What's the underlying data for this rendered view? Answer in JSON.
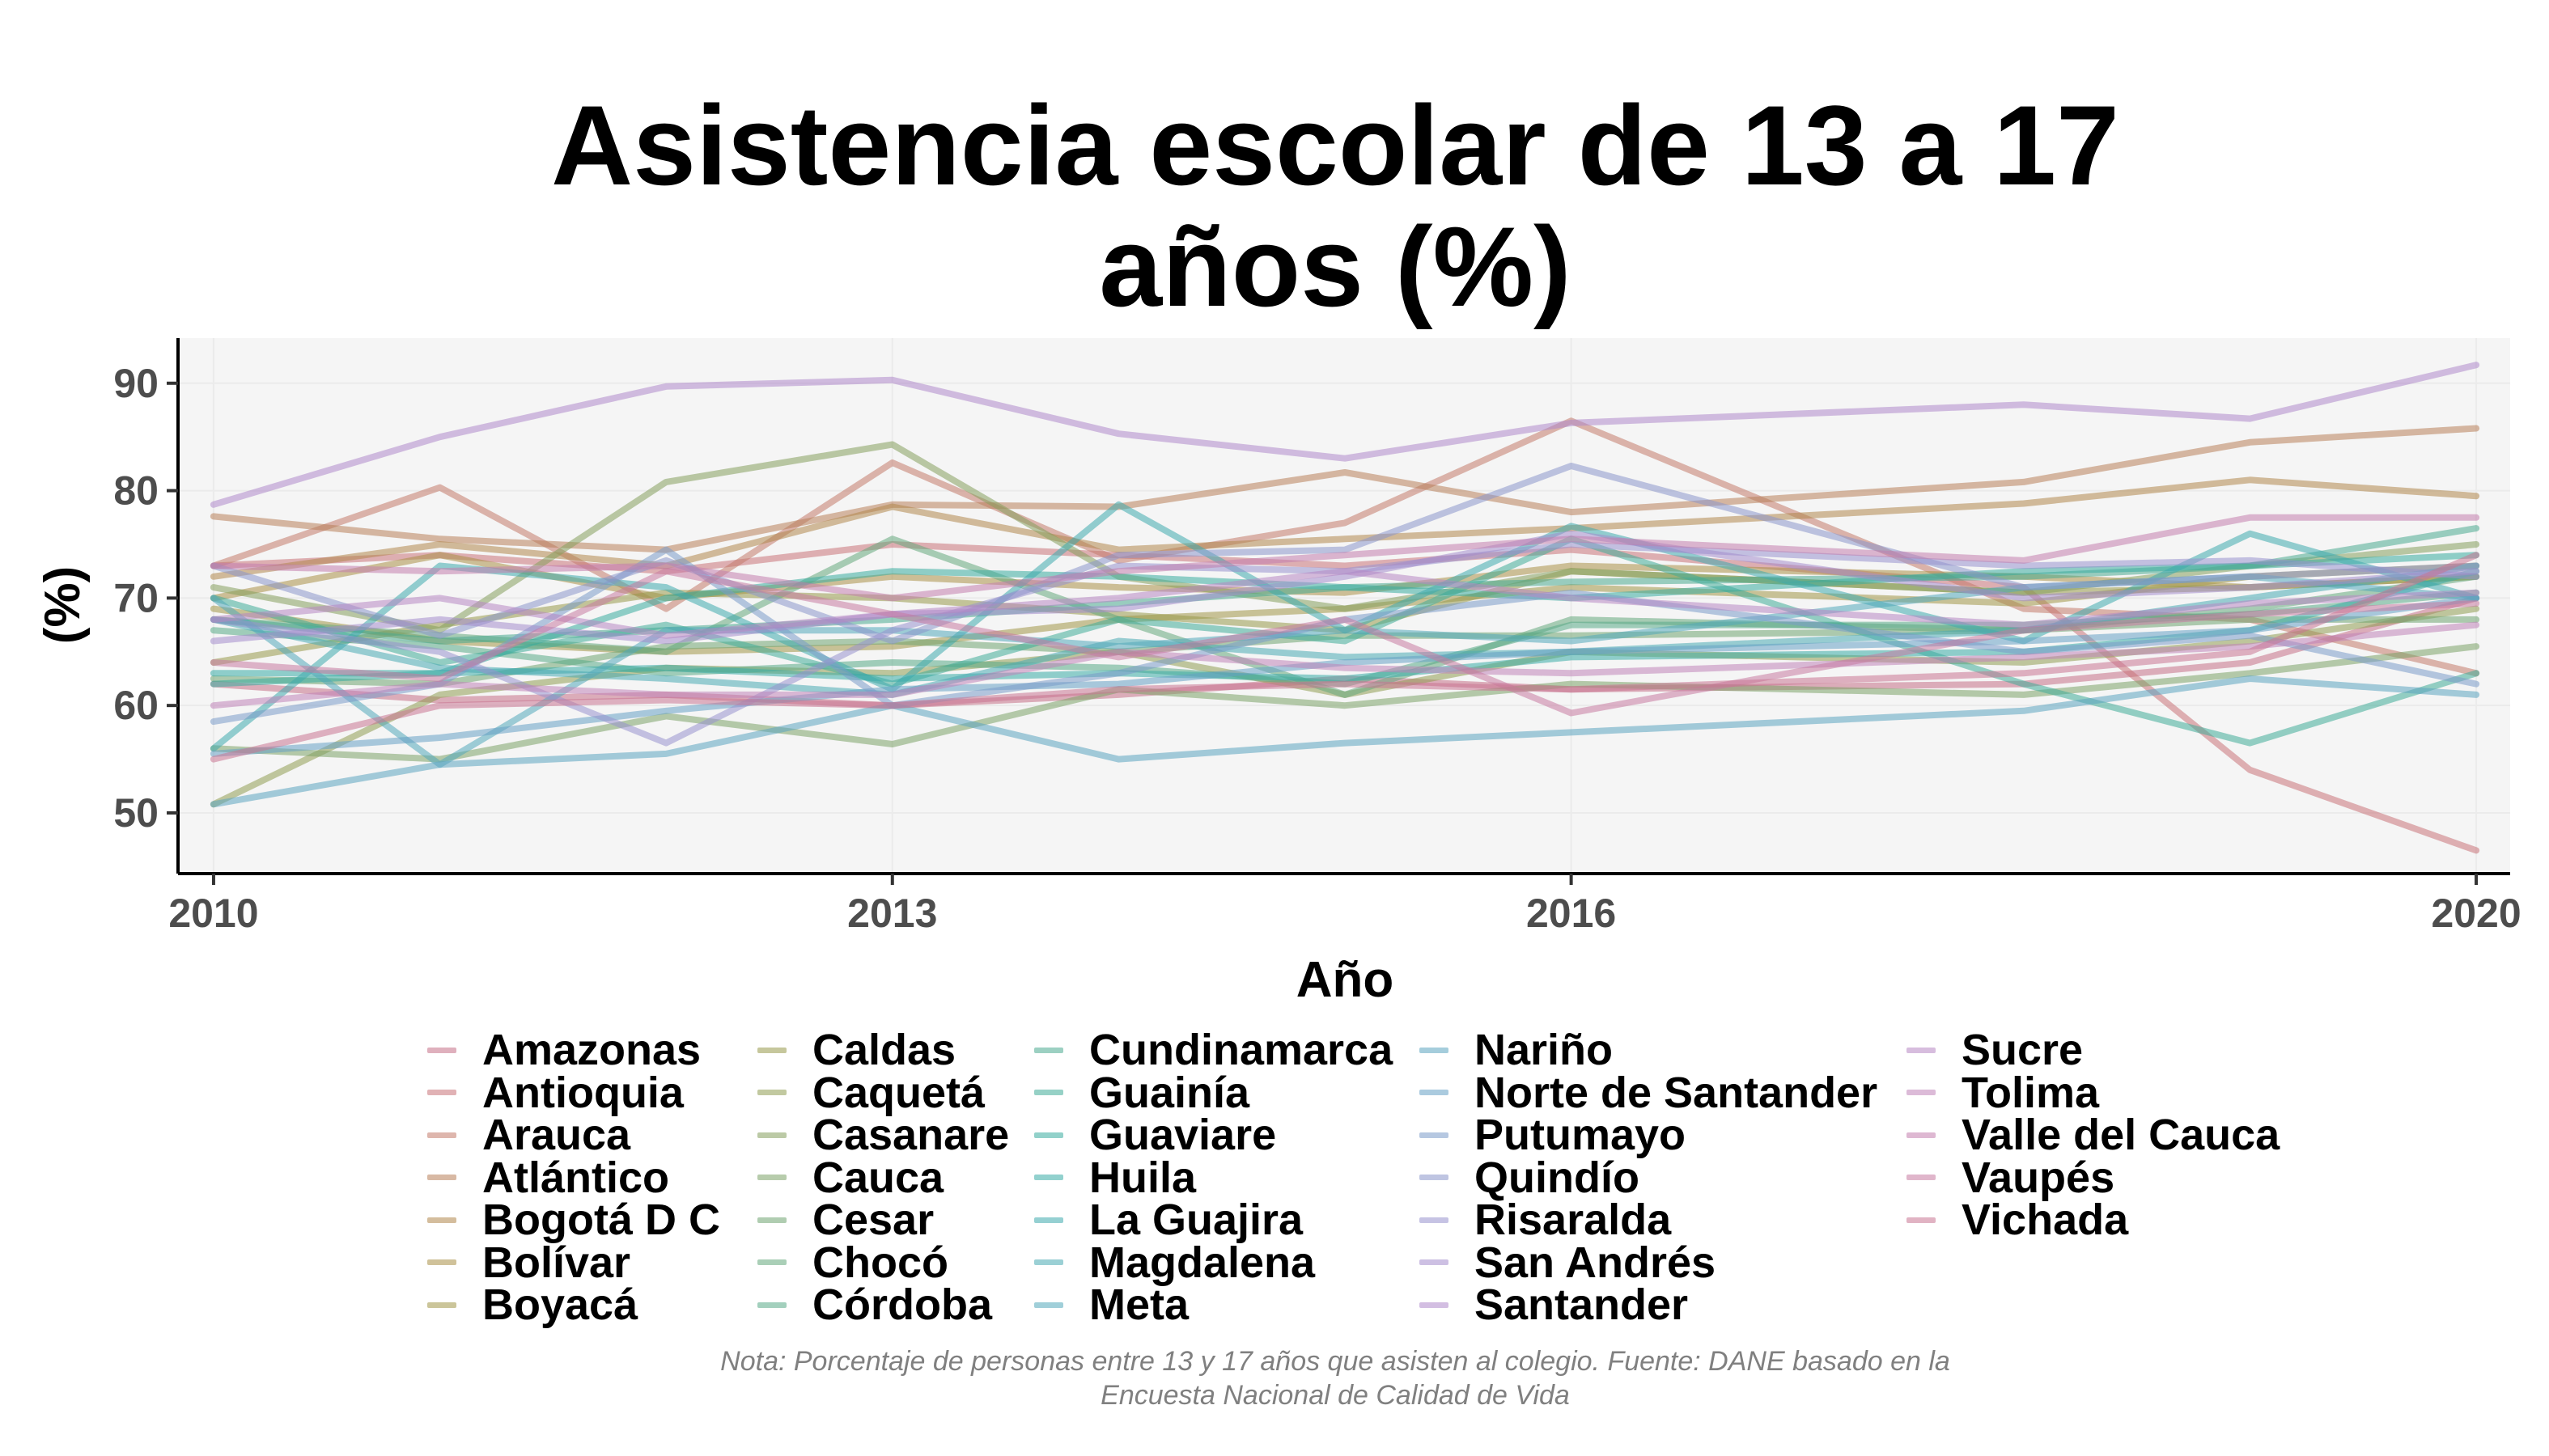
{
  "chart_data": {
    "type": "line",
    "title_lines": [
      "Asistencia escolar de 13 a 17",
      "años (%)"
    ],
    "xlabel": "Año",
    "ylabel": "(%)",
    "xlim": [
      2009.85,
      2020.15
    ],
    "ylim": [
      44.5,
      94.2
    ],
    "xticks": [
      2010,
      2013,
      2016,
      2020
    ],
    "yticks": [
      50,
      60,
      70,
      80,
      90
    ],
    "grid": true,
    "legend_position": "bottom",
    "years": [
      2010,
      2011,
      2012,
      2013,
      2014,
      2015,
      2016,
      2018,
      2019,
      2020
    ],
    "series": [
      {
        "name": "Amazonas",
        "color": "#c46f86",
        "values": [
          62.0,
          60.5,
          61.0,
          60.0,
          61.0,
          62.5,
          61.5,
          62.0,
          64.0,
          70.0
        ]
      },
      {
        "name": "Antioquia",
        "color": "#c87378",
        "values": [
          73.0,
          74.0,
          72.5,
          75.0,
          74.0,
          73.0,
          74.5,
          71.0,
          54.0,
          46.5
        ]
      },
      {
        "name": "Arauca",
        "color": "#c27a6a",
        "values": [
          73.0,
          80.3,
          69.0,
          82.6,
          73.5,
          77.0,
          86.5,
          69.0,
          68.0,
          63.0
        ]
      },
      {
        "name": "Atlántico",
        "color": "#b8805a",
        "values": [
          77.6,
          75.5,
          74.5,
          78.7,
          78.5,
          81.7,
          78.0,
          80.8,
          84.5,
          85.8
        ]
      },
      {
        "name": "Bogotá D C",
        "color": "#b0874c",
        "values": [
          72.0,
          75.0,
          73.0,
          78.5,
          74.5,
          75.5,
          76.5,
          78.8,
          81.0,
          79.5
        ]
      },
      {
        "name": "Bolívar",
        "color": "#a98f47",
        "values": [
          70.0,
          74.0,
          70.0,
          72.0,
          71.0,
          70.5,
          73.0,
          72.0,
          71.0,
          72.0
        ]
      },
      {
        "name": "Boyacá",
        "color": "#a19547",
        "values": [
          69.0,
          66.0,
          65.0,
          65.5,
          68.0,
          69.0,
          71.0,
          69.5,
          72.0,
          73.0
        ]
      },
      {
        "name": "Caldas",
        "color": "#98994a",
        "values": [
          64.0,
          67.5,
          70.5,
          70.0,
          68.5,
          67.0,
          72.5,
          70.5,
          71.0,
          72.0
        ]
      },
      {
        "name": "Caquetá",
        "color": "#8f9c52",
        "values": [
          50.8,
          61.0,
          63.5,
          63.0,
          65.0,
          61.0,
          65.0,
          64.0,
          66.0,
          69.0
        ]
      },
      {
        "name": "Casanare",
        "color": "#859f5d",
        "values": [
          71.0,
          67.0,
          80.8,
          84.3,
          72.0,
          69.0,
          72.5,
          70.5,
          73.0,
          75.0
        ]
      },
      {
        "name": "Cauca",
        "color": "#7ba267",
        "values": [
          56.0,
          55.0,
          59.0,
          56.4,
          61.5,
          60.0,
          62.0,
          61.0,
          63.0,
          65.5
        ]
      },
      {
        "name": "Cesar",
        "color": "#70a471",
        "values": [
          62.5,
          62.0,
          65.5,
          66.0,
          65.0,
          66.5,
          66.5,
          67.0,
          68.0,
          68.0
        ]
      },
      {
        "name": "Chocó",
        "color": "#64a77c",
        "values": [
          68.0,
          66.5,
          65.0,
          75.5,
          68.0,
          61.0,
          68.0,
          67.0,
          69.0,
          72.0
        ]
      },
      {
        "name": "Córdoba",
        "color": "#57a986",
        "values": [
          67.0,
          65.5,
          63.0,
          64.0,
          63.5,
          62.0,
          67.5,
          67.5,
          68.5,
          70.5
        ]
      },
      {
        "name": "Cundinamarca",
        "color": "#4aaa8f",
        "values": [
          68.0,
          66.0,
          67.0,
          68.0,
          69.5,
          71.0,
          71.5,
          72.0,
          73.0,
          76.5
        ]
      },
      {
        "name": "Guainía",
        "color": "#3fab97",
        "values": [
          70.0,
          64.0,
          67.5,
          62.0,
          68.0,
          66.0,
          75.5,
          62.0,
          56.5,
          63.0
        ]
      },
      {
        "name": "Guaviare",
        "color": "#38ab9f",
        "values": [
          62.0,
          63.0,
          70.0,
          72.5,
          72.0,
          71.0,
          70.0,
          72.5,
          73.0,
          74.0
        ]
      },
      {
        "name": "Huila",
        "color": "#38aba6",
        "values": [
          63.0,
          63.0,
          63.5,
          62.5,
          63.0,
          62.5,
          64.5,
          65.0,
          67.0,
          72.5
        ]
      },
      {
        "name": "La Guajira",
        "color": "#3eaaad",
        "values": [
          56.0,
          73.0,
          71.0,
          61.5,
          78.7,
          67.0,
          76.7,
          66.0,
          76.0,
          70.0
        ]
      },
      {
        "name": "Magdalena",
        "color": "#48a9b3",
        "values": [
          68.0,
          63.5,
          62.5,
          61.0,
          66.0,
          64.5,
          65.0,
          67.0,
          70.0,
          73.0
        ]
      },
      {
        "name": "Meta",
        "color": "#52a7b9",
        "values": [
          70.0,
          54.5,
          67.0,
          67.0,
          65.5,
          67.0,
          66.0,
          71.0,
          72.0,
          70.0
        ]
      },
      {
        "name": "Nariño",
        "color": "#5ba4bf",
        "values": [
          50.8,
          54.5,
          55.5,
          60.0,
          55.0,
          56.5,
          57.5,
          59.5,
          62.5,
          61.0
        ]
      },
      {
        "name": "Norte de Santander",
        "color": "#66a1c4",
        "values": [
          55.5,
          57.0,
          59.5,
          61.5,
          62.0,
          64.0,
          65.0,
          66.0,
          67.0,
          70.0
        ]
      },
      {
        "name": "Putumayo",
        "color": "#7a9bc9",
        "values": [
          58.5,
          62.0,
          74.5,
          60.0,
          63.0,
          68.0,
          70.5,
          65.0,
          66.5,
          62.0
        ]
      },
      {
        "name": "Quindío",
        "color": "#8a96cb",
        "values": [
          73.0,
          66.5,
          73.5,
          66.0,
          74.0,
          74.5,
          82.3,
          71.0,
          72.0,
          73.0
        ]
      },
      {
        "name": "Risaralda",
        "color": "#9891cd",
        "values": [
          68.0,
          65.0,
          56.5,
          67.0,
          73.0,
          72.5,
          75.0,
          73.0,
          73.5,
          72.0
        ]
      },
      {
        "name": "San Andrés",
        "color": "#a48ccc",
        "values": [
          66.0,
          68.0,
          66.0,
          68.5,
          69.0,
          72.0,
          76.0,
          70.0,
          71.0,
          72.5
        ]
      },
      {
        "name": "Santander",
        "color": "#ae88ca",
        "values": [
          78.7,
          85.0,
          89.7,
          90.3,
          85.3,
          83.0,
          86.3,
          88.0,
          86.7,
          91.7
        ]
      },
      {
        "name": "Sucre",
        "color": "#b786c3",
        "values": [
          68.0,
          70.0,
          66.5,
          68.5,
          70.0,
          72.5,
          70.0,
          67.5,
          69.5,
          70.5
        ]
      },
      {
        "name": "Tolima",
        "color": "#bf83b8",
        "values": [
          60.0,
          62.0,
          61.0,
          61.0,
          65.0,
          63.5,
          63.0,
          64.5,
          65.5,
          67.5
        ]
      },
      {
        "name": "Valle del Cauca",
        "color": "#c37dad",
        "values": [
          73.0,
          72.5,
          73.0,
          70.0,
          72.5,
          74.0,
          75.5,
          73.5,
          77.5,
          77.5
        ]
      },
      {
        "name": "Vaupés",
        "color": "#c77aa1",
        "values": [
          64.0,
          62.5,
          72.5,
          68.5,
          64.5,
          68.0,
          59.3,
          67.0,
          68.5,
          69.5
        ]
      },
      {
        "name": "Vichada",
        "color": "#c87592",
        "values": [
          55.0,
          60.0,
          60.5,
          60.0,
          61.5,
          62.0,
          61.5,
          63.0,
          65.0,
          74.0
        ]
      }
    ]
  },
  "caption_lines": [
    "Nota: Porcentaje de personas entre 13 y 17 años que asisten al colegio. Fuente: DANE basado en la",
    "Encuesta Nacional de Calidad de Vida"
  ],
  "legend_columns": [
    [
      0,
      1,
      2,
      3,
      4,
      5,
      6
    ],
    [
      7,
      8,
      9,
      10,
      11,
      12,
      13
    ],
    [
      14,
      15,
      16,
      17,
      18,
      19,
      20
    ],
    [
      21,
      22,
      23,
      24,
      25,
      26,
      27
    ],
    [
      28,
      29,
      30,
      31,
      32
    ]
  ]
}
